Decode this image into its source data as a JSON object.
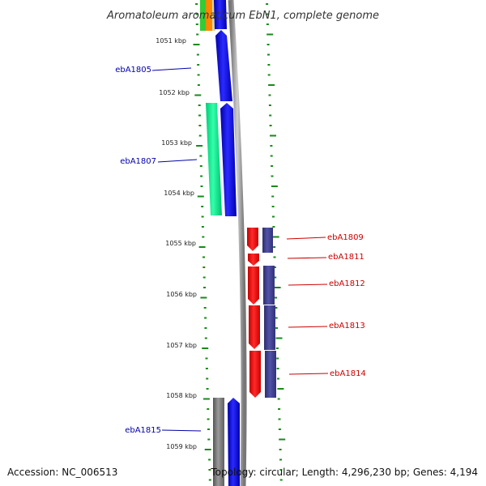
{
  "title": "Aromatoleum aromaticum EbN1, complete genome",
  "footer": {
    "accession": "Accession: NC_006513",
    "topology": "Topology: circular; Length: 4,296,230 bp; Genes: 4,194"
  },
  "colors": {
    "forward_label": "#0000aa",
    "reverse_label": "#cc0000",
    "tick": "#1a8a1a",
    "backbone": "#888888"
  },
  "scale_labels": [
    "1051 kbp",
    "1052 kbp",
    "1053 kbp",
    "1054 kbp",
    "1055 kbp",
    "1056 kbp",
    "1057 kbp",
    "1058 kbp",
    "1059 kbp"
  ],
  "gene_labels": {
    "left": [
      "ebA1805",
      "ebA1807",
      "ebA1815"
    ],
    "right": [
      "ebA1809",
      "ebA1811",
      "ebA1812",
      "ebA1813",
      "ebA1814"
    ]
  }
}
